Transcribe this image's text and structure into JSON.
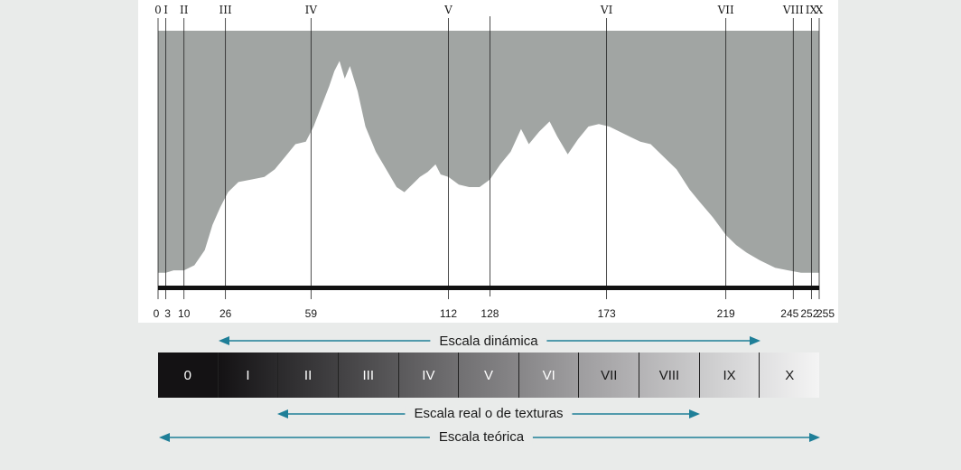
{
  "histogram": {
    "zone_labels": [
      {
        "label": "0",
        "value": 0
      },
      {
        "label": "I",
        "value": 3
      },
      {
        "label": "II",
        "value": 10
      },
      {
        "label": "III",
        "value": 26
      },
      {
        "label": "IV",
        "value": 59
      },
      {
        "label": "V",
        "value": 112
      },
      {
        "label": "VI",
        "value": 173
      },
      {
        "label": "VII",
        "value": 219
      },
      {
        "label": "VIII",
        "value": 245
      },
      {
        "label": "IX",
        "value": 252
      },
      {
        "label": "X",
        "value": 255
      }
    ],
    "extra_marker": 128,
    "value_labels": [
      "0",
      "3",
      "10",
      "26",
      "59",
      "112",
      "128",
      "173",
      "219",
      "245",
      "252",
      "255"
    ],
    "profile": [
      [
        0,
        0.04
      ],
      [
        3,
        0.04
      ],
      [
        6,
        0.05
      ],
      [
        10,
        0.05
      ],
      [
        14,
        0.07
      ],
      [
        18,
        0.13
      ],
      [
        21,
        0.23
      ],
      [
        24,
        0.3
      ],
      [
        27,
        0.36
      ],
      [
        31,
        0.4
      ],
      [
        36,
        0.41
      ],
      [
        41,
        0.42
      ],
      [
        45,
        0.45
      ],
      [
        49,
        0.5
      ],
      [
        53,
        0.55
      ],
      [
        57,
        0.56
      ],
      [
        60,
        0.62
      ],
      [
        63,
        0.7
      ],
      [
        66,
        0.78
      ],
      [
        68,
        0.84
      ],
      [
        70,
        0.88
      ],
      [
        72,
        0.81
      ],
      [
        74,
        0.86
      ],
      [
        77,
        0.76
      ],
      [
        80,
        0.62
      ],
      [
        84,
        0.52
      ],
      [
        88,
        0.45
      ],
      [
        92,
        0.38
      ],
      [
        95,
        0.36
      ],
      [
        98,
        0.39
      ],
      [
        101,
        0.42
      ],
      [
        104,
        0.44
      ],
      [
        107,
        0.47
      ],
      [
        109,
        0.43
      ],
      [
        112,
        0.42
      ],
      [
        116,
        0.39
      ],
      [
        120,
        0.38
      ],
      [
        124,
        0.38
      ],
      [
        128,
        0.41
      ],
      [
        132,
        0.47
      ],
      [
        136,
        0.52
      ],
      [
        140,
        0.61
      ],
      [
        143,
        0.55
      ],
      [
        147,
        0.6
      ],
      [
        151,
        0.64
      ],
      [
        154,
        0.58
      ],
      [
        158,
        0.51
      ],
      [
        162,
        0.57
      ],
      [
        166,
        0.62
      ],
      [
        170,
        0.63
      ],
      [
        174,
        0.62
      ],
      [
        178,
        0.6
      ],
      [
        182,
        0.58
      ],
      [
        186,
        0.56
      ],
      [
        190,
        0.55
      ],
      [
        195,
        0.5
      ],
      [
        200,
        0.45
      ],
      [
        205,
        0.37
      ],
      [
        209,
        0.32
      ],
      [
        214,
        0.26
      ],
      [
        219,
        0.19
      ],
      [
        223,
        0.15
      ],
      [
        227,
        0.12
      ],
      [
        232,
        0.09
      ],
      [
        238,
        0.06
      ],
      [
        243,
        0.05
      ],
      [
        248,
        0.04
      ],
      [
        252,
        0.04
      ],
      [
        255,
        0.04
      ]
    ]
  },
  "zones": [
    {
      "label": "0",
      "color": "#141214"
    },
    {
      "label": "I",
      "color": "#2b2a2c"
    },
    {
      "label": "II",
      "color": "#424143"
    },
    {
      "label": "III",
      "color": "#5a595b"
    },
    {
      "label": "IV",
      "color": "#717072"
    },
    {
      "label": "V",
      "color": "#878688"
    },
    {
      "label": "VI",
      "color": "#9e9d9f"
    },
    {
      "label": "VII",
      "color": "#b4b3b5"
    },
    {
      "label": "VIII",
      "color": "#cacacb"
    },
    {
      "label": "IX",
      "color": "#dfdfe0"
    },
    {
      "label": "X",
      "color": "#f4f4f4"
    }
  ],
  "scales": {
    "dynamic": "Escala dinámica",
    "real": "Escala real o de texturas",
    "theoretical": "Escala teórica"
  },
  "colors": {
    "histogram_fill": "#a1a5a3",
    "arrow": "#1f7f98"
  }
}
